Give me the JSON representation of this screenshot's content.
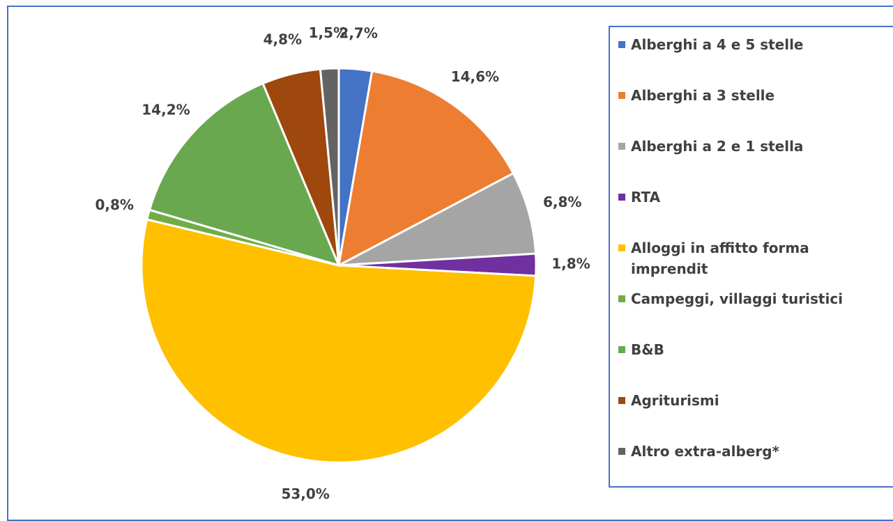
{
  "chart_data": {
    "type": "pie",
    "categories": [
      "Alberghi a 4 e 5 stelle",
      "Alberghi a 3 stelle",
      "Alberghi a 2 e 1 stella",
      "RTA",
      "Alloggi in affitto forma imprendit",
      "Campeggi, villaggi turistici",
      "B&B",
      "Agriturismi",
      "Altro extra-alberg*"
    ],
    "values": [
      2.7,
      14.6,
      6.8,
      1.8,
      53.0,
      0.8,
      14.2,
      4.8,
      1.5
    ],
    "value_labels": [
      "2,7%",
      "14,6%",
      "6,8%",
      "1,8%",
      "53,0%",
      "0,8%",
      "14,2%",
      "4,8%",
      "1,5%"
    ],
    "colors": [
      "#4472c4",
      "#ed7d31",
      "#a5a5a5",
      "#7030a0",
      "#ffc000",
      "#70ad47",
      "#6aa84f",
      "#9e480e",
      "#636363"
    ],
    "legend": "right"
  }
}
